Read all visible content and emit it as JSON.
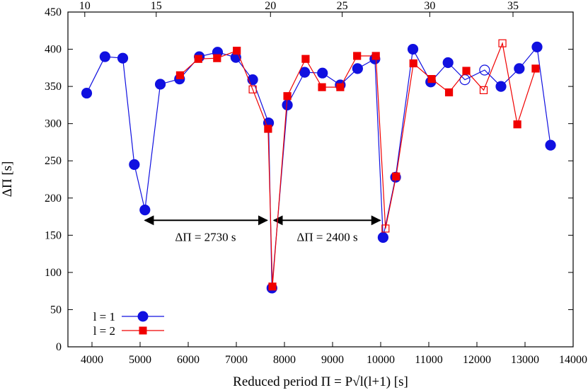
{
  "chart_data": {
    "type": "line",
    "xlabel": "Reduced period Π = P√l(l+1) [s]",
    "ylabel": "ΔΠ [s]",
    "xlim": [
      3500,
      14000
    ],
    "ylim": [
      0,
      450
    ],
    "x_ticks": [
      4000,
      5000,
      6000,
      7000,
      8000,
      9000,
      10000,
      11000,
      12000,
      13000,
      14000
    ],
    "y_ticks": [
      0,
      50,
      100,
      150,
      200,
      250,
      300,
      350,
      400,
      450
    ],
    "top_axis": {
      "label": "",
      "ticks": [
        {
          "label": "10",
          "x": 3850
        },
        {
          "label": "15",
          "x": 5335
        },
        {
          "label": "20",
          "x": 7710
        },
        {
          "label": "25",
          "x": 9200
        },
        {
          "label": "30",
          "x": 11020
        },
        {
          "label": "35",
          "x": 12750
        }
      ]
    },
    "grid": false,
    "legend": {
      "placement": "bottom-left",
      "entries": [
        "l = 1",
        "l = 2"
      ]
    },
    "annotations": [
      {
        "text": "ΔΠ = 2730 s",
        "x_from": 5100,
        "x_to": 7640,
        "y": 170,
        "label_x": 6360,
        "label_y": 148
      },
      {
        "text": "ΔΠ = 2400 s",
        "x_from": 7780,
        "x_to": 9990,
        "y": 170,
        "label_x": 8890,
        "label_y": 148
      }
    ],
    "series": [
      {
        "name": "l = 1",
        "color": "#1010e0",
        "marker": "circle",
        "points": [
          {
            "x": 3890,
            "y": 341
          },
          {
            "x": 4270,
            "y": 390
          },
          {
            "x": 4640,
            "y": 388
          },
          {
            "x": 4880,
            "y": 245
          },
          {
            "x": 5100,
            "y": 184
          },
          {
            "x": 5420,
            "y": 353
          },
          {
            "x": 5820,
            "y": 360
          },
          {
            "x": 6230,
            "y": 390
          },
          {
            "x": 6610,
            "y": 396
          },
          {
            "x": 6990,
            "y": 389
          },
          {
            "x": 7340,
            "y": 359
          },
          {
            "x": 7670,
            "y": 301
          },
          {
            "x": 7740,
            "y": 79
          },
          {
            "x": 8060,
            "y": 325
          },
          {
            "x": 8420,
            "y": 369
          },
          {
            "x": 8790,
            "y": 368
          },
          {
            "x": 9160,
            "y": 352
          },
          {
            "x": 9520,
            "y": 374
          },
          {
            "x": 9880,
            "y": 387
          },
          {
            "x": 10050,
            "y": 147
          },
          {
            "x": 10310,
            "y": 228
          },
          {
            "x": 10670,
            "y": 400
          },
          {
            "x": 11040,
            "y": 356
          },
          {
            "x": 11400,
            "y": 382
          },
          {
            "x": 11750,
            "y": 359,
            "open": true
          },
          {
            "x": 12160,
            "y": 372,
            "open": true
          },
          {
            "x": 12500,
            "y": 350
          },
          {
            "x": 12880,
            "y": 374
          },
          {
            "x": 13250,
            "y": 403
          },
          {
            "x": 13530,
            "y": 271
          }
        ]
      },
      {
        "name": "l = 2",
        "color": "#f00000",
        "marker": "square",
        "points": [
          {
            "x": 5830,
            "y": 365
          },
          {
            "x": 6210,
            "y": 387
          },
          {
            "x": 6600,
            "y": 388
          },
          {
            "x": 7010,
            "y": 398
          },
          {
            "x": 7340,
            "y": 346,
            "open": true
          },
          {
            "x": 7660,
            "y": 293
          },
          {
            "x": 7750,
            "y": 81
          },
          {
            "x": 8060,
            "y": 337
          },
          {
            "x": 8440,
            "y": 387
          },
          {
            "x": 8780,
            "y": 349
          },
          {
            "x": 9160,
            "y": 349
          },
          {
            "x": 9510,
            "y": 391
          },
          {
            "x": 9900,
            "y": 391
          },
          {
            "x": 10100,
            "y": 159,
            "open": true
          },
          {
            "x": 10320,
            "y": 229
          },
          {
            "x": 10680,
            "y": 381
          },
          {
            "x": 11060,
            "y": 360
          },
          {
            "x": 11420,
            "y": 342
          },
          {
            "x": 11780,
            "y": 371
          },
          {
            "x": 12140,
            "y": 345,
            "open": true
          },
          {
            "x": 12530,
            "y": 408,
            "open": true
          },
          {
            "x": 12840,
            "y": 299
          },
          {
            "x": 13220,
            "y": 374
          }
        ]
      }
    ]
  }
}
